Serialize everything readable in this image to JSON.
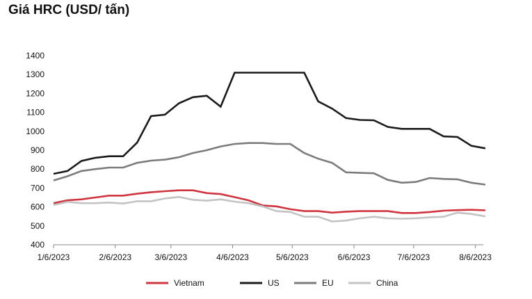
{
  "chart_data": {
    "type": "line",
    "title": "Giá HRC (USD/ tấn)",
    "xlabel": "",
    "ylabel": "",
    "ylim": [
      400,
      1400
    ],
    "yticks": [
      400,
      500,
      600,
      700,
      800,
      900,
      1000,
      1100,
      1200,
      1300,
      1400
    ],
    "xlim": [
      "1/6/2023",
      "8/10/2023"
    ],
    "xticks": [
      "1/6/2023",
      "2/6/2023",
      "3/6/2023",
      "4/6/2023",
      "5/6/2023",
      "6/6/2023",
      "7/6/2023",
      "8/6/2023"
    ],
    "x": [
      "1/6/2023",
      "1/13/2023",
      "1/20/2023",
      "1/27/2023",
      "2/3/2023",
      "2/10/2023",
      "2/17/2023",
      "2/24/2023",
      "3/3/2023",
      "3/10/2023",
      "3/17/2023",
      "3/24/2023",
      "3/31/2023",
      "4/7/2023",
      "4/14/2023",
      "4/21/2023",
      "4/28/2023",
      "5/5/2023",
      "5/12/2023",
      "5/19/2023",
      "5/26/2023",
      "6/2/2023",
      "6/9/2023",
      "6/16/2023",
      "6/23/2023",
      "6/30/2023",
      "7/7/2023",
      "7/14/2023",
      "7/21/2023",
      "7/28/2023",
      "8/4/2023",
      "8/11/2023"
    ],
    "legend_position": "bottom",
    "grid": false,
    "series": [
      {
        "name": "Vietnam",
        "color": "#d0343f",
        "values": [
          620,
          635,
          640,
          650,
          660,
          660,
          670,
          678,
          683,
          688,
          688,
          673,
          668,
          652,
          635,
          608,
          603,
          588,
          578,
          578,
          570,
          575,
          578,
          578,
          578,
          568,
          568,
          573,
          580,
          583,
          585,
          582
        ]
      },
      {
        "name": "US",
        "color": "#1a1a1a",
        "values": [
          775,
          790,
          843,
          860,
          868,
          868,
          940,
          1080,
          1088,
          1148,
          1180,
          1188,
          1130,
          1310,
          1310,
          1310,
          1310,
          1310,
          1310,
          1158,
          1120,
          1070,
          1060,
          1058,
          1023,
          1013,
          1013,
          1013,
          973,
          970,
          923,
          910
        ]
      },
      {
        "name": "EU",
        "color": "#7b7b7b",
        "values": [
          740,
          762,
          790,
          800,
          808,
          808,
          833,
          845,
          850,
          863,
          885,
          900,
          920,
          933,
          938,
          938,
          933,
          933,
          885,
          855,
          833,
          783,
          780,
          778,
          743,
          728,
          732,
          753,
          748,
          746,
          728,
          718
        ]
      },
      {
        "name": "China",
        "color": "#c3c3c3",
        "values": [
          610,
          627,
          620,
          620,
          623,
          618,
          630,
          630,
          645,
          653,
          638,
          633,
          640,
          628,
          620,
          603,
          578,
          573,
          548,
          548,
          523,
          528,
          540,
          548,
          540,
          538,
          540,
          545,
          548,
          570,
          563,
          550
        ]
      }
    ]
  }
}
